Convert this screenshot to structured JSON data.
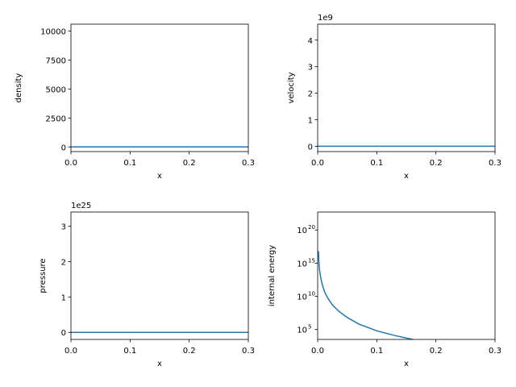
{
  "chart_data": [
    {
      "type": "line",
      "xlabel": "x",
      "ylabel": "density",
      "xlim": [
        0,
        0.3
      ],
      "ylim": [
        -400,
        10600
      ],
      "xticks": [
        "0.0",
        "0.1",
        "0.2",
        "0.3"
      ],
      "yticks": [
        {
          "value": 0,
          "label": "0"
        },
        {
          "value": 2500,
          "label": "2500"
        },
        {
          "value": 5000,
          "label": "5000"
        },
        {
          "value": 7500,
          "label": "7500"
        },
        {
          "value": 10000,
          "label": "10000"
        }
      ],
      "offset_text": "",
      "yscale": "linear",
      "color": "#1f77b4",
      "series": [
        {
          "x": [
            0,
            0.3
          ],
          "y": [
            0,
            0
          ]
        }
      ]
    },
    {
      "type": "line",
      "xlabel": "x",
      "ylabel": "velocity",
      "xlim": [
        0,
        0.3
      ],
      "ylim": [
        -0.2,
        4.6
      ],
      "xticks": [
        "0.0",
        "0.1",
        "0.2",
        "0.3"
      ],
      "yticks": [
        {
          "value": 0,
          "label": "0"
        },
        {
          "value": 1,
          "label": "1"
        },
        {
          "value": 2,
          "label": "2"
        },
        {
          "value": 3,
          "label": "3"
        },
        {
          "value": 4,
          "label": "4"
        }
      ],
      "offset_text": "1e9",
      "yscale": "linear",
      "color": "#1f77b4",
      "series": [
        {
          "x": [
            0,
            0.3
          ],
          "y": [
            0,
            0
          ]
        }
      ]
    },
    {
      "type": "line",
      "xlabel": "x",
      "ylabel": "pressure",
      "xlim": [
        0,
        0.3
      ],
      "ylim": [
        -0.2,
        3.4
      ],
      "xticks": [
        "0.0",
        "0.1",
        "0.2",
        "0.3"
      ],
      "yticks": [
        {
          "value": 0,
          "label": "0"
        },
        {
          "value": 1,
          "label": "1"
        },
        {
          "value": 2,
          "label": "2"
        },
        {
          "value": 3,
          "label": "3"
        }
      ],
      "offset_text": "1e25",
      "yscale": "linear",
      "color": "#1f77b4",
      "series": [
        {
          "x": [
            0,
            0.3
          ],
          "y": [
            0,
            0
          ]
        }
      ]
    },
    {
      "type": "line",
      "xlabel": "x",
      "ylabel": "internal energy",
      "xlim": [
        0,
        0.3
      ],
      "ylim": [
        3.5,
        22.7
      ],
      "xticks": [
        "0.0",
        "0.1",
        "0.2",
        "0.3"
      ],
      "yticks": [
        {
          "value": 5,
          "base": "10",
          "exp": "5"
        },
        {
          "value": 10,
          "base": "10",
          "exp": "10"
        },
        {
          "value": 15,
          "base": "10",
          "exp": "15"
        },
        {
          "value": 20,
          "base": "10",
          "exp": "20"
        }
      ],
      "offset_text": "",
      "yscale": "log",
      "color": "#1f77b4",
      "series": [
        {
          "x": [
            0.0015,
            0.002,
            0.003,
            0.005,
            0.008,
            0.012,
            0.018,
            0.025,
            0.035,
            0.05,
            0.07,
            0.1,
            0.13,
            0.163,
            0.163
          ],
          "y": [
            16.8,
            15.3,
            14.1,
            12.9,
            11.7,
            10.6,
            9.6,
            8.7,
            7.8,
            6.8,
            5.8,
            4.8,
            4.1,
            3.45,
            3.0
          ]
        }
      ]
    }
  ]
}
